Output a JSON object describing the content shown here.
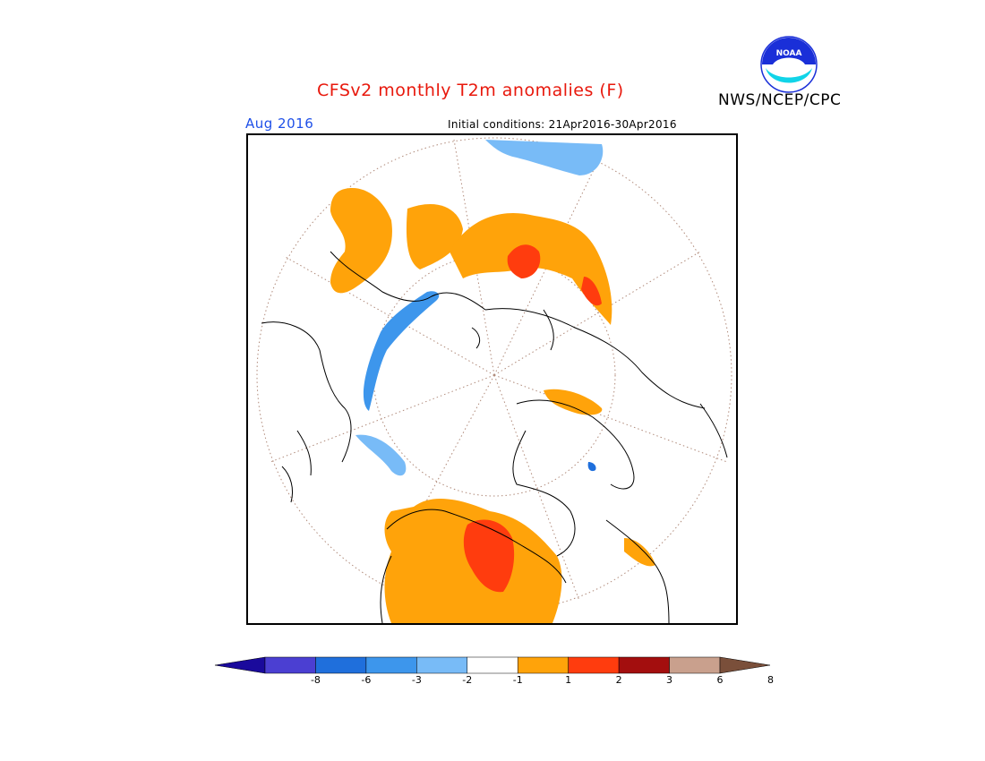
{
  "header": {
    "title": "CFSv2 monthly T2m anomalies (F)",
    "agency": "NWS/NCEP/CPC",
    "logo_text": "NOAA"
  },
  "map": {
    "valid_month": "Aug 2016",
    "initial_conditions": "Initial conditions: 21Apr2016-30Apr2016",
    "projection": "north-polar-stereographic"
  },
  "legend": {
    "labels": [
      "-8",
      "-6",
      "-3",
      "-2",
      "-1",
      "1",
      "2",
      "3",
      "6",
      "8"
    ],
    "colors": [
      "#1a0a9c",
      "#4b3fd2",
      "#1f6fdc",
      "#3d96ec",
      "#78bbf7",
      "#ffffff",
      "#ffa30a",
      "#ff3c0e",
      "#a30e0e",
      "#c9a08d",
      "#7a4f3a"
    ]
  }
}
